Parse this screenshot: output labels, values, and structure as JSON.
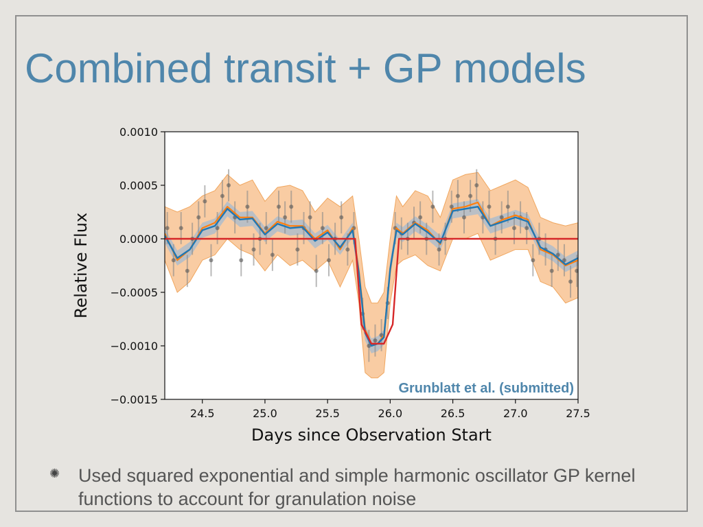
{
  "slide": {
    "title": "Combined transit + GP models",
    "bullet_icon": "sparkle-icon",
    "bullets": [
      "Used squared exponential and simple harmonic oscillator GP kernel functions to account for granulation noise"
    ]
  },
  "colors": {
    "title": "#4f86ab",
    "gp_band": "#f6b77c",
    "gp_band_edge": "#f0a65e",
    "gp_mean": "#ff7f0e",
    "model": "#1f77b4",
    "model_band": "#9fb9d3",
    "transit": "#d62728",
    "points": "#555555",
    "annotation": "#4f86ab"
  },
  "chart_data": {
    "type": "scatter",
    "title": "",
    "xlabel": "Days since Observation Start",
    "ylabel": "Relative Flux",
    "xlim": [
      24.2,
      27.5
    ],
    "ylim": [
      -0.0015,
      0.001
    ],
    "xticks": [
      24.5,
      25.0,
      25.5,
      26.0,
      26.5,
      27.0,
      27.5
    ],
    "xtick_labels": [
      "24.5",
      "25.0",
      "25.5",
      "26.0",
      "26.5",
      "27.0",
      "27.5"
    ],
    "yticks": [
      0.001,
      0.0005,
      0.0,
      -0.0005,
      -0.001,
      -0.0015
    ],
    "ytick_labels": [
      "0.0010",
      "0.0005",
      "0.0000",
      "−0.0005",
      "−0.0010",
      "−0.0015"
    ],
    "grid": false,
    "annotation": "Grunblatt et al. (submitted)",
    "series": [
      {
        "kind": "gp_band",
        "x": [
          24.2,
          24.3,
          24.4,
          24.5,
          24.6,
          24.7,
          24.8,
          24.9,
          25.0,
          25.1,
          25.2,
          25.3,
          25.4,
          25.5,
          25.6,
          25.7,
          25.75,
          25.8,
          25.85,
          25.9,
          25.95,
          26.0,
          26.05,
          26.1,
          26.2,
          26.3,
          26.4,
          26.5,
          26.6,
          26.7,
          26.8,
          26.9,
          27.0,
          27.1,
          27.2,
          27.3,
          27.4,
          27.5
        ],
        "upper": [
          0.0003,
          0.00025,
          0.0003,
          0.0004,
          0.00045,
          0.0006,
          0.0005,
          0.00055,
          0.00035,
          0.00048,
          0.0005,
          0.00045,
          0.00025,
          0.00038,
          0.0003,
          0.0004,
          0.0,
          -0.00045,
          -0.0006,
          -0.0006,
          -0.0005,
          0.0,
          0.0004,
          0.0003,
          0.00045,
          0.0004,
          0.0002,
          0.00055,
          0.0006,
          0.00062,
          0.00045,
          0.0005,
          0.00055,
          0.00048,
          0.0002,
          0.00015,
          0.00012,
          0.00015
        ],
        "lower": [
          -0.0002,
          -0.0005,
          -0.0004,
          -0.0002,
          -0.00015,
          0.0,
          -0.0001,
          -0.00015,
          -0.0003,
          -0.00015,
          -0.00025,
          -0.0002,
          -0.0003,
          -0.0002,
          -0.00045,
          -0.0002,
          -0.0006,
          -0.00125,
          -0.0013,
          -0.0013,
          -0.00125,
          -0.0006,
          -0.00025,
          -0.0002,
          -0.00015,
          -0.00025,
          -0.0003,
          0.0,
          0.0,
          5e-05,
          -0.0002,
          -0.00015,
          -0.0001,
          -0.0001,
          -0.0004,
          -0.00045,
          -0.0006,
          -0.00055
        ]
      },
      {
        "kind": "gp_mean",
        "x": [
          24.2,
          24.3,
          24.4,
          24.5,
          24.6,
          24.7,
          24.8,
          24.9,
          25.0,
          25.1,
          25.2,
          25.3,
          25.4,
          25.5,
          25.6,
          25.7,
          25.75,
          25.8,
          25.85,
          25.9,
          25.95,
          26.0,
          26.05,
          26.1,
          26.2,
          26.3,
          26.4,
          26.5,
          26.6,
          26.7,
          26.8,
          26.9,
          27.0,
          27.1,
          27.2,
          27.3,
          27.4,
          27.5
        ],
        "y": [
          5e-05,
          -0.0002,
          -0.0001,
          0.0001,
          0.00015,
          0.0003,
          0.0002,
          0.0002,
          5e-05,
          0.00016,
          0.00012,
          0.00012,
          0.0,
          8e-05,
          -0.0001,
          0.0001,
          -0.0003,
          -0.00085,
          -0.00098,
          -0.00098,
          -0.0009,
          -0.0003,
          0.0001,
          5e-05,
          0.00015,
          8e-05,
          -5e-05,
          0.00028,
          0.0003,
          0.00034,
          0.00012,
          0.00018,
          0.00022,
          0.00018,
          -0.0001,
          -0.00015,
          -0.00025,
          -0.0002
        ]
      },
      {
        "kind": "model",
        "x": [
          24.2,
          24.3,
          24.4,
          24.5,
          24.6,
          24.7,
          24.8,
          24.9,
          25.0,
          25.1,
          25.2,
          25.3,
          25.4,
          25.5,
          25.6,
          25.7,
          25.75,
          25.8,
          25.85,
          25.9,
          25.95,
          26.0,
          26.05,
          26.1,
          26.2,
          26.3,
          26.4,
          26.5,
          26.6,
          26.7,
          26.8,
          26.9,
          27.0,
          27.1,
          27.2,
          27.3,
          27.4,
          27.5
        ],
        "y": [
          3e-05,
          -0.00018,
          -0.0001,
          8e-05,
          0.00012,
          0.00028,
          0.00018,
          0.00019,
          4e-05,
          0.00014,
          0.0001,
          0.00011,
          -2e-05,
          6e-05,
          -8e-05,
          8e-05,
          -0.00032,
          -0.00088,
          -0.001,
          -0.00098,
          -0.00092,
          -0.00028,
          8e-05,
          4e-05,
          0.00014,
          6e-05,
          -4e-05,
          0.00026,
          0.00028,
          0.0003,
          0.00012,
          0.00016,
          0.0002,
          0.00016,
          -8e-05,
          -0.00014,
          -0.00024,
          -0.00018
        ]
      },
      {
        "kind": "transit",
        "x": [
          24.2,
          25.72,
          25.77,
          25.85,
          25.95,
          26.02,
          26.07,
          27.5
        ],
        "y": [
          0.0,
          0.0,
          -0.0008,
          -0.00098,
          -0.00098,
          -0.0008,
          0.0,
          0.0
        ]
      },
      {
        "kind": "points",
        "x": [
          24.22,
          24.27,
          24.33,
          24.38,
          24.42,
          24.47,
          24.52,
          24.57,
          24.62,
          24.66,
          24.71,
          24.76,
          24.81,
          24.86,
          24.91,
          24.96,
          25.01,
          25.06,
          25.11,
          25.16,
          25.21,
          25.26,
          25.31,
          25.36,
          25.41,
          25.46,
          25.51,
          25.56,
          25.61,
          25.66,
          25.71,
          25.78,
          25.83,
          25.88,
          25.93,
          25.98,
          26.04,
          26.09,
          26.14,
          26.19,
          26.24,
          26.29,
          26.34,
          26.39,
          26.44,
          26.49,
          26.54,
          26.59,
          26.64,
          26.69,
          26.74,
          26.79,
          26.84,
          26.89,
          26.94,
          26.99,
          27.04,
          27.09,
          27.14,
          27.19,
          27.24,
          27.29,
          27.34,
          27.39,
          27.44,
          27.49
        ],
        "y": [
          0.0001,
          -0.0002,
          0.0001,
          -0.0003,
          0.0,
          0.0002,
          0.00035,
          -0.0002,
          0.0001,
          0.0004,
          0.0005,
          0.0002,
          -0.0002,
          0.0003,
          -0.0001,
          0.0,
          0.0001,
          -0.00015,
          0.0003,
          0.0002,
          0.0003,
          -0.0001,
          0.0001,
          0.0002,
          -0.0003,
          0.0001,
          -0.0002,
          0.0,
          0.0002,
          -0.0001,
          0.0001,
          -0.0007,
          -0.001,
          -0.00095,
          -0.0009,
          -0.0006,
          0.0001,
          5e-05,
          0.0,
          0.00015,
          0.0002,
          0.0,
          0.0003,
          -0.0001,
          0.0,
          0.0003,
          0.0004,
          0.0002,
          0.0004,
          0.0005,
          0.0002,
          0.0003,
          0.0,
          0.0002,
          0.0003,
          0.0001,
          0.0002,
          0.0001,
          -0.0002,
          0.0,
          -0.0001,
          -0.0003,
          -0.00015,
          -0.0002,
          -0.0004,
          -0.0003
        ],
        "err": [
          0.00015,
          0.00015,
          0.00015,
          0.00015,
          0.00015,
          0.00015,
          0.00015,
          0.00015,
          0.00015,
          0.00015,
          0.00015,
          0.00015,
          0.00015,
          0.00015,
          0.00015,
          0.00015,
          0.00015,
          0.00015,
          0.00015,
          0.00015,
          0.00015,
          0.00015,
          0.00015,
          0.00015,
          0.00015,
          0.00015,
          0.00015,
          0.00015,
          0.00015,
          0.00015,
          0.00015,
          0.00015,
          0.00015,
          0.00015,
          0.00015,
          0.00015,
          0.00015,
          0.00015,
          0.00015,
          0.00015,
          0.00015,
          0.00015,
          0.00015,
          0.00015,
          0.00015,
          0.00015,
          0.00015,
          0.00015,
          0.00015,
          0.00015,
          0.00015,
          0.00015,
          0.00015,
          0.00015,
          0.00015,
          0.00015,
          0.00015,
          0.00015,
          0.00015,
          0.00015,
          0.00015,
          0.00015,
          0.00015,
          0.00015,
          0.00015,
          0.00015
        ]
      }
    ]
  }
}
